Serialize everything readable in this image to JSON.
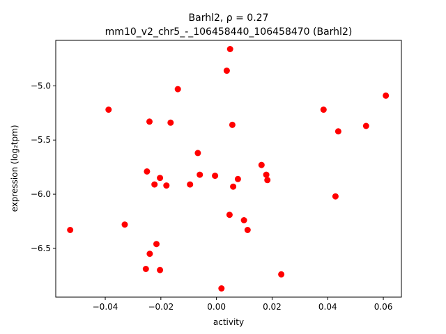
{
  "chart_data": {
    "type": "scatter",
    "title_line1": "Barhl2, ρ = 0.27",
    "title_line2": "mm10_v2_chr5_-_106458440_106458470 (Barhl2)",
    "xlabel": "activity",
    "ylabel": "expression (log₂tpm)",
    "xlim": [
      -0.0578,
      0.0665
    ],
    "ylim": [
      -6.95,
      -4.58
    ],
    "xticks": [
      -0.04,
      -0.02,
      0.0,
      0.02,
      0.04,
      0.06
    ],
    "xtick_labels": [
      "−0.04",
      "−0.02",
      "0.00",
      "0.02",
      "0.04",
      "0.06"
    ],
    "yticks": [
      -6.5,
      -6.0,
      -5.5,
      -5.0
    ],
    "ytick_labels": [
      "−6.5",
      "−6.0",
      "−5.5",
      "−5.0"
    ],
    "grid": false,
    "marker_color": "#ff0000",
    "series": [
      {
        "points": [
          [
            0.0049,
            -4.66
          ],
          [
            0.0037,
            -4.86
          ],
          [
            -0.0139,
            -5.03
          ],
          [
            -0.0388,
            -5.22
          ],
          [
            -0.0241,
            -5.33
          ],
          [
            -0.0165,
            -5.34
          ],
          [
            0.0057,
            -5.36
          ],
          [
            -0.0067,
            -5.62
          ],
          [
            -0.025,
            -5.79
          ],
          [
            -0.0203,
            -5.85
          ],
          [
            -0.0223,
            -5.91
          ],
          [
            -0.018,
            -5.92
          ],
          [
            -0.006,
            -5.82
          ],
          [
            -0.0095,
            -5.91
          ],
          [
            -0.0005,
            -5.83
          ],
          [
            0.0077,
            -5.86
          ],
          [
            0.006,
            -5.93
          ],
          [
            0.0162,
            -5.73
          ],
          [
            0.0179,
            -5.82
          ],
          [
            0.0183,
            -5.87
          ],
          [
            0.0385,
            -5.22
          ],
          [
            0.0438,
            -5.42
          ],
          [
            0.0538,
            -5.37
          ],
          [
            0.0609,
            -5.09
          ],
          [
            0.0428,
            -6.02
          ],
          [
            -0.0526,
            -6.33
          ],
          [
            -0.033,
            -6.28
          ],
          [
            0.0047,
            -6.19
          ],
          [
            0.0099,
            -6.24
          ],
          [
            0.0112,
            -6.33
          ],
          [
            -0.0216,
            -6.46
          ],
          [
            -0.024,
            -6.55
          ],
          [
            -0.0254,
            -6.69
          ],
          [
            -0.0203,
            -6.7
          ],
          [
            0.0233,
            -6.74
          ],
          [
            0.0018,
            -6.87
          ]
        ]
      }
    ]
  }
}
